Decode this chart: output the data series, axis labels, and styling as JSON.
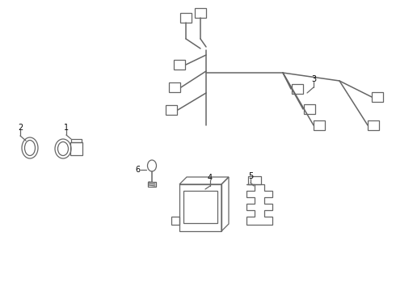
{
  "bg_color": "#ffffff",
  "line_color": "#666666",
  "label_color": "#000000",
  "fig_width": 4.9,
  "fig_height": 3.6,
  "dpi": 100
}
